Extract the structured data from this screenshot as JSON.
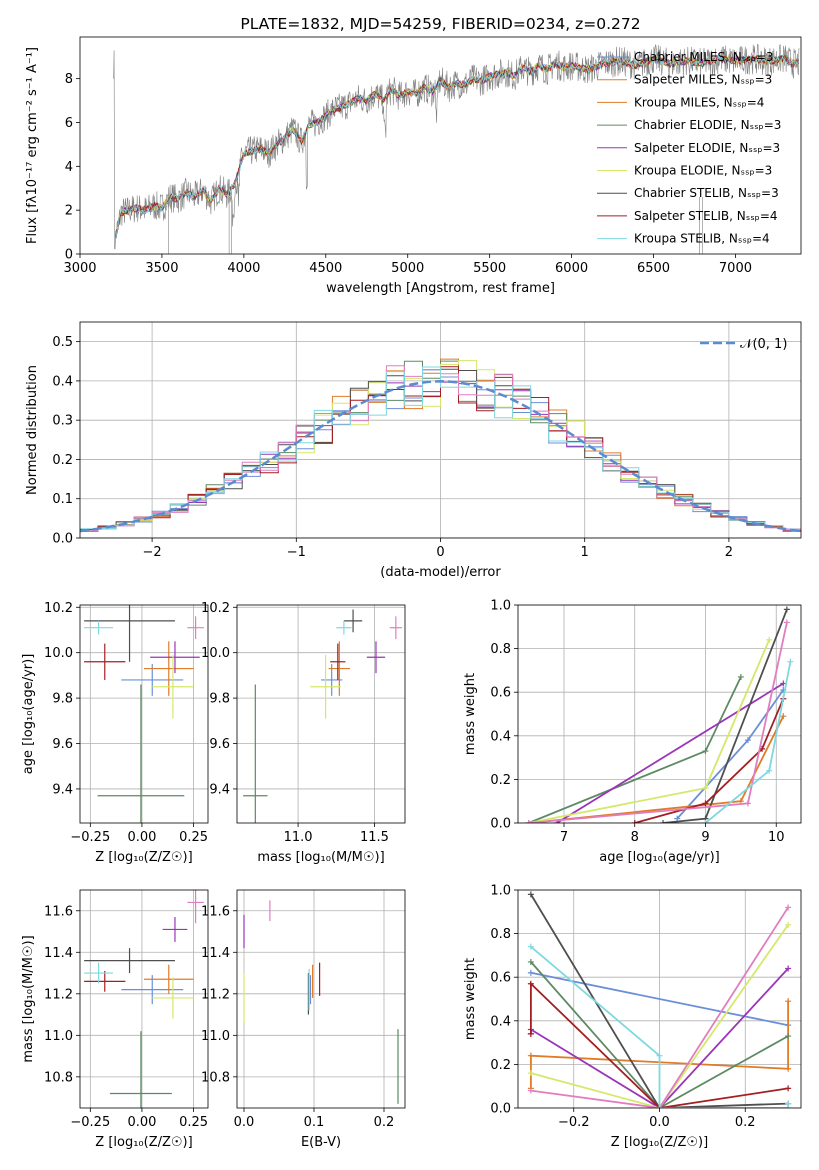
{
  "colors": [
    "#6a8fd8",
    "#e07b28",
    "#5d8a64",
    "#9a35b8",
    "#d4e86a",
    "#4f4f4f",
    "#a31f22",
    "#e07ec0",
    "#7fd8e0"
  ],
  "chart_data": [
    {
      "id": "spectrum",
      "type": "line",
      "title": "PLATE=1832, MJD=54259, FIBERID=0234, z=0.272",
      "xlabel": "wavelength [Angstrom, rest frame]",
      "ylabel": "Flux [fλ10⁻¹⁷ erg cm⁻² s⁻¹ A⁻¹]",
      "xlim": [
        3000,
        7400
      ],
      "ylim": [
        0,
        9.9
      ],
      "xticks": [
        3000,
        3500,
        4000,
        4500,
        5000,
        5500,
        6000,
        6500,
        7000
      ],
      "yticks": [
        0,
        2,
        4,
        6,
        8
      ],
      "data_x": [
        3210,
        3250,
        3300,
        3350,
        3400,
        3450,
        3500,
        3550,
        3600,
        3650,
        3700,
        3750,
        3800,
        3850,
        3900,
        3950,
        4000,
        4050,
        4100,
        4150,
        4200,
        4250,
        4300,
        4350,
        4400,
        4450,
        4500,
        4550,
        4600,
        4650,
        4700,
        4750,
        4800,
        4850,
        4900,
        4950,
        5000,
        5050,
        5100,
        5150,
        5200,
        5250,
        5300,
        5350,
        5400,
        5450,
        5500,
        5550,
        5600,
        5650,
        5700,
        5750,
        5800,
        5850,
        5900,
        5950,
        6000,
        6100,
        6200,
        6300,
        6400,
        6500,
        6600,
        6700,
        6800,
        6900,
        7000,
        7100,
        7200,
        7300,
        7350
      ],
      "data_y": [
        0.5,
        1.9,
        2.0,
        2.1,
        2.0,
        2.2,
        2.1,
        2.6,
        2.5,
        2.8,
        2.6,
        2.9,
        2.4,
        3.0,
        2.7,
        3.3,
        4.6,
        4.7,
        4.8,
        4.6,
        5.0,
        5.3,
        5.7,
        5.1,
        5.9,
        6.0,
        6.3,
        6.6,
        6.7,
        6.9,
        7.1,
        7.0,
        7.3,
        7.0,
        7.5,
        7.2,
        7.4,
        7.3,
        7.6,
        7.4,
        7.9,
        7.6,
        7.8,
        7.7,
        8.0,
        7.9,
        8.1,
        8.2,
        8.3,
        8.1,
        8.5,
        8.3,
        8.6,
        8.4,
        8.7,
        8.5,
        8.6,
        8.4,
        8.7,
        8.8,
        8.6,
        8.9,
        8.7,
        8.8,
        8.7,
        8.9,
        8.8,
        8.9,
        8.8,
        8.9,
        8.7
      ],
      "legend": [
        "Chabrier MILES, Nₛₛₚ=3",
        "Salpeter MILES, Nₛₛₚ=3",
        "Kroupa MILES, Nₛₛₚ=4",
        "Chabrier ELODIE, Nₛₛₚ=3",
        "Salpeter ELODIE, Nₛₛₚ=3",
        "Kroupa ELODIE, Nₛₛₚ=3",
        "Chabrier STELIB, Nₛₛₚ=3",
        "Salpeter STELIB, Nₛₛₚ=4",
        "Kroupa STELIB, Nₛₛₚ=4"
      ],
      "legend_colors": [
        "#6a8fd8",
        "#e07b28",
        "#e07b28",
        "#5d8a64",
        "#9a35b8",
        "#d4e86a",
        "#4f4f4f",
        "#a31f22",
        "#7fd8e0"
      ],
      "legend_position": "top-right"
    },
    {
      "id": "residuals",
      "type": "histogram",
      "xlabel": "(data-model)/error",
      "ylabel": "Normed distribution",
      "xlim": [
        -2.5,
        2.5
      ],
      "ylim": [
        0,
        0.55
      ],
      "xticks": [
        -2,
        -1,
        0,
        1,
        2
      ],
      "yticks": [
        0.0,
        0.1,
        0.2,
        0.3,
        0.4,
        0.5
      ],
      "grid": true,
      "legend": "𝒩(0, 1)",
      "legend_position": "top-right"
    },
    {
      "id": "age_vs_Z",
      "type": "scatter",
      "xlabel": "Z [log₁₀(Z/Z☉)]",
      "ylabel": "age  [log₁₀(age/yr)]",
      "xlim": [
        -0.3,
        0.32
      ],
      "ylim": [
        9.25,
        10.21
      ],
      "xticks": [
        -0.25,
        0.0,
        0.25
      ],
      "xticklabels": [
        "−0.25",
        "0.00",
        "0.25"
      ],
      "yticks": [
        9.4,
        9.6,
        9.8,
        10.0,
        10.2
      ],
      "grid": true,
      "points": [
        {
          "c": 0,
          "x": 0.05,
          "y": 9.88,
          "dx": 0.15,
          "dy": 0.07
        },
        {
          "c": 1,
          "x": 0.13,
          "y": 9.93,
          "dx": 0.12,
          "dy": 0.12
        },
        {
          "c": 2,
          "x": -0.005,
          "y": 9.37,
          "dx": 0.21,
          "dy": 0.49
        },
        {
          "c": 3,
          "x": 0.16,
          "y": 9.98,
          "dx": 0.12,
          "dy": 0.07
        },
        {
          "c": 4,
          "x": 0.15,
          "y": 9.85,
          "dx": 0.1,
          "dy": 0.14
        },
        {
          "c": 5,
          "x": -0.06,
          "y": 10.14,
          "dx": 0.22,
          "dy": 0.18
        },
        {
          "c": 6,
          "x": -0.18,
          "y": 9.96,
          "dx": 0.1,
          "dy": 0.08
        },
        {
          "c": 7,
          "x": 0.26,
          "y": 10.11,
          "dx": 0.04,
          "dy": 0.05
        },
        {
          "c": 8,
          "x": -0.21,
          "y": 10.11,
          "dx": 0.07,
          "dy": 0.03
        }
      ]
    },
    {
      "id": "age_vs_mass",
      "type": "scatter",
      "xlabel": "mass [log₁₀(M/M☉)]",
      "xlim": [
        10.6,
        11.7
      ],
      "ylim": [
        9.25,
        10.21
      ],
      "xticks": [
        11.0,
        11.5
      ],
      "yticks": [
        9.4,
        9.6,
        9.8,
        10.0,
        10.2
      ],
      "grid": true,
      "points": [
        {
          "c": 0,
          "x": 11.22,
          "y": 9.88,
          "dx": 0.07,
          "dy": 0.07
        },
        {
          "c": 1,
          "x": 11.27,
          "y": 9.93,
          "dx": 0.07,
          "dy": 0.12
        },
        {
          "c": 2,
          "x": 10.72,
          "y": 9.37,
          "dx": 0.08,
          "dy": 0.49
        },
        {
          "c": 3,
          "x": 11.51,
          "y": 9.98,
          "dx": 0.06,
          "dy": 0.07
        },
        {
          "c": 4,
          "x": 11.18,
          "y": 9.85,
          "dx": 0.1,
          "dy": 0.14
        },
        {
          "c": 5,
          "x": 11.36,
          "y": 10.14,
          "dx": 0.06,
          "dy": 0.05
        },
        {
          "c": 6,
          "x": 11.26,
          "y": 9.96,
          "dx": 0.05,
          "dy": 0.08
        },
        {
          "c": 7,
          "x": 11.64,
          "y": 10.11,
          "dx": 0.04,
          "dy": 0.05
        },
        {
          "c": 8,
          "x": 11.3,
          "y": 10.11,
          "dx": 0.05,
          "dy": 0.03
        }
      ]
    },
    {
      "id": "massweight_vs_age",
      "type": "line",
      "xlabel": "age  [log₁₀(age/yr)]",
      "ylabel": "mass weight",
      "xlim": [
        6.35,
        10.35
      ],
      "ylim": [
        0,
        1.0
      ],
      "xticks": [
        7,
        8,
        9,
        10
      ],
      "yticks": [
        0.0,
        0.2,
        0.4,
        0.6,
        0.8,
        1.0
      ],
      "grid": true,
      "series": [
        {
          "c": 0,
          "x": [
            8.6,
            9.6,
            10.1
          ],
          "y": [
            0.02,
            0.38,
            0.61
          ]
        },
        {
          "c": 1,
          "x": [
            6.5,
            9.5,
            10.1
          ],
          "y": [
            0.0,
            0.1,
            0.49
          ]
        },
        {
          "c": 2,
          "x": [
            6.5,
            9.0,
            9.5
          ],
          "y": [
            0.0,
            0.33,
            0.67
          ]
        },
        {
          "c": 3,
          "x": [
            6.9,
            10.1
          ],
          "y": [
            0.0,
            0.64
          ]
        },
        {
          "c": 4,
          "x": [
            6.5,
            9.0,
            9.9
          ],
          "y": [
            0.0,
            0.16,
            0.84
          ]
        },
        {
          "c": 5,
          "x": [
            8.4,
            9.0,
            10.15
          ],
          "y": [
            0.0,
            0.02,
            0.98
          ]
        },
        {
          "c": 6,
          "x": [
            8.0,
            9.0,
            9.8,
            10.1
          ],
          "y": [
            0.0,
            0.09,
            0.34,
            0.57
          ]
        },
        {
          "c": 7,
          "x": [
            6.5,
            9.6,
            10.15
          ],
          "y": [
            0.0,
            0.09,
            0.92
          ]
        },
        {
          "c": 8,
          "x": [
            9.0,
            9.9,
            10.2
          ],
          "y": [
            0.0,
            0.24,
            0.74
          ]
        }
      ]
    },
    {
      "id": "mass_vs_Z",
      "type": "scatter",
      "xlabel": "Z [log₁₀(Z/Z☉)]",
      "ylabel": "mass [log₁₀(M/M☉)]",
      "xlim": [
        -0.3,
        0.32
      ],
      "ylim": [
        10.65,
        11.7
      ],
      "xticks": [
        -0.25,
        0.0,
        0.25
      ],
      "xticklabels": [
        "−0.25",
        "0.00",
        "0.25"
      ],
      "yticks": [
        10.8,
        11.0,
        11.2,
        11.4,
        11.6
      ],
      "grid": true,
      "points": [
        {
          "c": 0,
          "x": 0.05,
          "y": 11.22,
          "dx": 0.15,
          "dy": 0.07
        },
        {
          "c": 1,
          "x": 0.13,
          "y": 11.27,
          "dx": 0.12,
          "dy": 0.07
        },
        {
          "c": 2,
          "x": -0.005,
          "y": 10.72,
          "dx": 0.15,
          "dy": 0.3
        },
        {
          "c": 3,
          "x": 0.16,
          "y": 11.51,
          "dx": 0.06,
          "dy": 0.06
        },
        {
          "c": 4,
          "x": 0.15,
          "y": 11.18,
          "dx": 0.1,
          "dy": 0.1
        },
        {
          "c": 5,
          "x": -0.06,
          "y": 11.36,
          "dx": 0.22,
          "dy": 0.06
        },
        {
          "c": 6,
          "x": -0.18,
          "y": 11.26,
          "dx": 0.1,
          "dy": 0.05
        },
        {
          "c": 7,
          "x": 0.26,
          "y": 11.64,
          "dx": 0.04,
          "dy": 0.1
        },
        {
          "c": 8,
          "x": -0.21,
          "y": 11.3,
          "dx": 0.07,
          "dy": 0.05
        }
      ]
    },
    {
      "id": "mass_vs_ebv",
      "type": "scatter",
      "xlabel": "E(B-V)",
      "xlim": [
        -0.01,
        0.23
      ],
      "ylim": [
        10.65,
        11.7
      ],
      "xticks": [
        0.0,
        0.1,
        0.2
      ],
      "xticklabels": [
        "0.0",
        "0.1",
        "0.2"
      ],
      "yticks": [
        10.8,
        11.0,
        11.2,
        11.4,
        11.6
      ],
      "grid": true,
      "points": [
        {
          "c": 0,
          "x": 0.095,
          "y": 11.22,
          "dx": 0,
          "dy": 0.07
        },
        {
          "c": 1,
          "x": 0.098,
          "y": 11.26,
          "dx": 0,
          "dy": 0.08
        },
        {
          "c": 2,
          "x": 0.22,
          "y": 10.85,
          "dx": 0,
          "dy": 0.18
        },
        {
          "c": 3,
          "x": 0.0,
          "y": 11.5,
          "dx": 0,
          "dy": 0.08
        },
        {
          "c": 4,
          "x": 0.0,
          "y": 11.18,
          "dx": 0,
          "dy": 0.12
        },
        {
          "c": 5,
          "x": 0.092,
          "y": 11.2,
          "dx": 0,
          "dy": 0.1
        },
        {
          "c": 6,
          "x": 0.108,
          "y": 11.27,
          "dx": 0,
          "dy": 0.08
        },
        {
          "c": 7,
          "x": 0.037,
          "y": 11.6,
          "dx": 0,
          "dy": 0.05
        },
        {
          "c": 8,
          "x": 0.093,
          "y": 11.22,
          "dx": 0,
          "dy": 0.1
        }
      ]
    },
    {
      "id": "massweight_vs_Z",
      "type": "line",
      "xlabel": "Z [log₁₀(Z/Z☉)]",
      "ylabel": "mass weight",
      "xlim": [
        -0.33,
        0.33
      ],
      "ylim": [
        0,
        1.0
      ],
      "xticks": [
        -0.2,
        0.0,
        0.2
      ],
      "xticklabels": [
        "−0.2",
        "0.0",
        "0.2"
      ],
      "yticks": [
        0.0,
        0.2,
        0.4,
        0.6,
        0.8,
        1.0
      ],
      "grid": true,
      "series": [
        {
          "c": 0,
          "x": [
            -0.3,
            0.3
          ],
          "y": [
            0.62,
            0.38
          ]
        },
        {
          "c": 1,
          "x": [
            -0.3,
            -0.3,
            0.3,
            0.3
          ],
          "y": [
            0.09,
            0.24,
            0.18,
            0.49
          ]
        },
        {
          "c": 2,
          "x": [
            -0.3,
            0.0,
            0.3
          ],
          "y": [
            0.67,
            0.0,
            0.33
          ]
        },
        {
          "c": 3,
          "x": [
            -0.3,
            -0.3,
            0.0,
            0.3
          ],
          "y": [
            0.34,
            0.36,
            0.0,
            0.64
          ]
        },
        {
          "c": 4,
          "x": [
            -0.3,
            0.0,
            0.3
          ],
          "y": [
            0.16,
            0.0,
            0.84
          ]
        },
        {
          "c": 5,
          "x": [
            -0.3,
            0.0,
            0.3
          ],
          "y": [
            0.98,
            0.0,
            0.02
          ]
        },
        {
          "c": 6,
          "x": [
            -0.3,
            -0.3,
            0.0,
            0.3
          ],
          "y": [
            0.34,
            0.57,
            0.0,
            0.09
          ]
        },
        {
          "c": 7,
          "x": [
            -0.3,
            0.0,
            0.3
          ],
          "y": [
            0.08,
            0.0,
            0.92
          ]
        },
        {
          "c": 8,
          "x": [
            -0.3,
            0.0,
            0.0,
            0.3,
            0.3
          ],
          "y": [
            0.74,
            0.24,
            0.0,
            0.0,
            0.02
          ]
        }
      ]
    }
  ]
}
